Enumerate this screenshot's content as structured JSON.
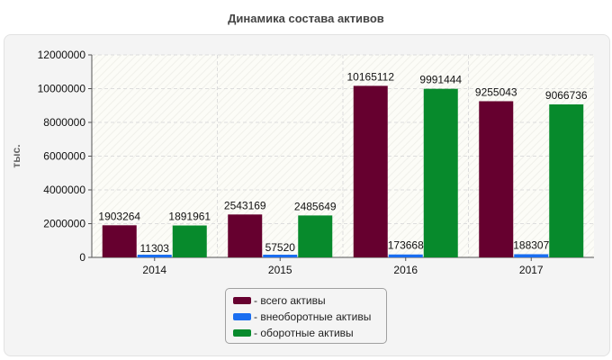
{
  "chart_data": {
    "type": "bar",
    "title": "Динамика состава активов",
    "ylabel": "тыс.",
    "xlabel": "",
    "categories": [
      "2014",
      "2015",
      "2016",
      "2017"
    ],
    "ylim": [
      0,
      12000000
    ],
    "yticks": [
      "0",
      "2000000",
      "4000000",
      "6000000",
      "8000000",
      "10000000",
      "12000000"
    ],
    "legend_position": "bottom",
    "grid": true,
    "series": [
      {
        "name": "- всего активы",
        "color": "#66002f",
        "values": [
          1903264,
          2543169,
          10165112,
          9255043
        ]
      },
      {
        "name": "- внеоборотные активы",
        "color": "#1a6ef0",
        "values": [
          11303,
          57520,
          173668,
          188307
        ]
      },
      {
        "name": "- оборотные активы",
        "color": "#078a2c",
        "values": [
          1891961,
          2485649,
          9991444,
          9066736
        ]
      }
    ]
  }
}
